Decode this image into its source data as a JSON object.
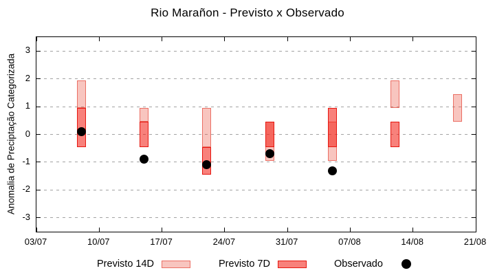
{
  "window": {
    "title": "Rio Marañon - Previsto x Observado"
  },
  "chart_data": {
    "type": "bar",
    "subtype": "forecast-range-candlesticks-with-observed-points",
    "title": "Rio Marañon - Previsto x Observado",
    "xlabel": "",
    "ylabel": "Anomalia de Preciptação Categorizada",
    "ylim": [
      -3.5,
      3.5
    ],
    "yticks": [
      3,
      2,
      1,
      0,
      -1,
      -2,
      -3
    ],
    "grid": "horizontal-dashed",
    "x_days_total": 49,
    "xticks": [
      {
        "label": "03/07",
        "day": 0
      },
      {
        "label": "10/07",
        "day": 7
      },
      {
        "label": "17/07",
        "day": 14
      },
      {
        "label": "24/07",
        "day": 21
      },
      {
        "label": "31/07",
        "day": 28
      },
      {
        "label": "07/08",
        "day": 35
      },
      {
        "label": "14/08",
        "day": 42
      },
      {
        "label": "21/08",
        "day": 49
      }
    ],
    "bars": [
      {
        "date": "08/07",
        "day": 5,
        "previsto14": [
          0.95,
          1.95
        ],
        "previsto7": [
          -0.45,
          0.95
        ],
        "observado": 0.1
      },
      {
        "date": "15/07",
        "day": 12,
        "previsto14": [
          0.45,
          0.95
        ],
        "previsto7": [
          -0.45,
          0.45
        ],
        "observado": -0.9
      },
      {
        "date": "22/07",
        "day": 19,
        "previsto14": [
          -0.45,
          0.95
        ],
        "previsto7": [
          -1.45,
          -0.45
        ],
        "observado": -1.1
      },
      {
        "date": "29/07",
        "day": 26,
        "previsto14": [
          -0.95,
          0.45
        ],
        "previsto7": [
          -0.45,
          0.45
        ],
        "observado": -0.7
      },
      {
        "date": "05/08",
        "day": 33,
        "previsto14": [
          -0.95,
          0.45
        ],
        "previsto7": [
          -0.45,
          0.95
        ],
        "observado": -1.3
      },
      {
        "date": "12/08",
        "day": 40,
        "previsto14": [
          0.95,
          1.95
        ],
        "previsto7": [
          -0.45,
          0.45
        ],
        "observado": null
      },
      {
        "date": "19/08",
        "day": 47,
        "previsto14": [
          0.45,
          1.45
        ],
        "previsto7": null,
        "observado": null
      }
    ],
    "legend": [
      {
        "label": "Previsto 14D",
        "marker": "light-pink-bar"
      },
      {
        "label": "Previsto 7D",
        "marker": "red-bar"
      },
      {
        "label": "Observado",
        "marker": "black-dot"
      }
    ],
    "legend_position": "bottom-center",
    "colors": {
      "previsto14_fill": "#f8c5bf",
      "previsto14_border": "#ee857c",
      "previsto7_fill": "#f8817a",
      "previsto7_border": "#e6150e",
      "overlap_fill": "#f4675e",
      "observado": "#000000",
      "grid": "#a2a2a2",
      "axis": "#000000",
      "background": "#ffffff"
    }
  }
}
